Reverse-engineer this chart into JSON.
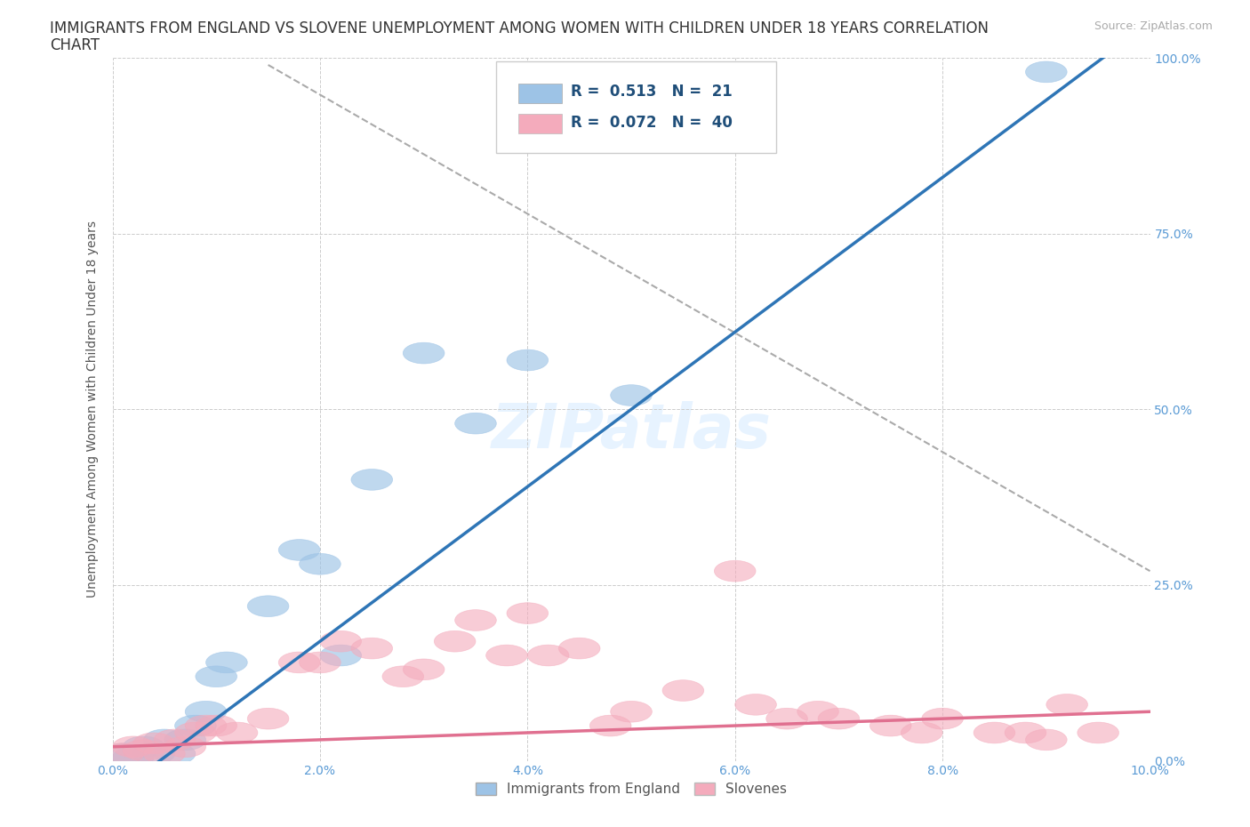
{
  "title_line1": "IMMIGRANTS FROM ENGLAND VS SLOVENE UNEMPLOYMENT AMONG WOMEN WITH CHILDREN UNDER 18 YEARS CORRELATION",
  "title_line2": "CHART",
  "source": "Source: ZipAtlas.com",
  "ylabel": "Unemployment Among Women with Children Under 18 years",
  "xlim": [
    0.0,
    0.1
  ],
  "ylim": [
    0.0,
    1.0
  ],
  "xticks": [
    0.0,
    0.02,
    0.04,
    0.06,
    0.08,
    0.1
  ],
  "xticklabels": [
    "0.0%",
    "2.0%",
    "4.0%",
    "6.0%",
    "8.0%",
    "10.0%"
  ],
  "yticks": [
    0.0,
    0.25,
    0.5,
    0.75,
    1.0
  ],
  "yticklabels": [
    "0.0%",
    "25.0%",
    "50.0%",
    "75.0%",
    "100.0%"
  ],
  "blue_color": "#9DC3E6",
  "pink_color": "#F4ABBC",
  "blue_line_color": "#2E75B6",
  "pink_line_color": "#E07090",
  "grid_color": "#CCCCCC",
  "legend_R_blue": "R =  0.513",
  "legend_N_blue": "N =  21",
  "legend_R_pink": "R =  0.072",
  "legend_N_pink": "N =  40",
  "blue_scatter_x": [
    0.001,
    0.002,
    0.003,
    0.004,
    0.005,
    0.006,
    0.007,
    0.008,
    0.009,
    0.01,
    0.011,
    0.015,
    0.018,
    0.02,
    0.022,
    0.025,
    0.03,
    0.035,
    0.04,
    0.05,
    0.09
  ],
  "blue_scatter_y": [
    0.01,
    0.005,
    0.02,
    0.01,
    0.03,
    0.01,
    0.03,
    0.05,
    0.07,
    0.12,
    0.14,
    0.22,
    0.3,
    0.28,
    0.15,
    0.4,
    0.58,
    0.48,
    0.57,
    0.52,
    0.98
  ],
  "pink_scatter_x": [
    0.001,
    0.002,
    0.003,
    0.004,
    0.005,
    0.006,
    0.007,
    0.008,
    0.009,
    0.01,
    0.012,
    0.015,
    0.018,
    0.02,
    0.022,
    0.025,
    0.028,
    0.03,
    0.033,
    0.035,
    0.038,
    0.04,
    0.042,
    0.045,
    0.048,
    0.05,
    0.055,
    0.06,
    0.062,
    0.065,
    0.068,
    0.07,
    0.075,
    0.078,
    0.08,
    0.085,
    0.088,
    0.09,
    0.092,
    0.095
  ],
  "pink_scatter_y": [
    0.01,
    0.02,
    0.015,
    0.025,
    0.01,
    0.03,
    0.02,
    0.04,
    0.05,
    0.05,
    0.04,
    0.06,
    0.14,
    0.14,
    0.17,
    0.16,
    0.12,
    0.13,
    0.17,
    0.2,
    0.15,
    0.21,
    0.15,
    0.16,
    0.05,
    0.07,
    0.1,
    0.27,
    0.08,
    0.06,
    0.07,
    0.06,
    0.05,
    0.04,
    0.06,
    0.04,
    0.04,
    0.03,
    0.08,
    0.04
  ],
  "blue_line_x": [
    0.0,
    0.1
  ],
  "blue_line_y": [
    -0.05,
    1.05
  ],
  "pink_line_x": [
    0.0,
    0.1
  ],
  "pink_line_y": [
    0.02,
    0.07
  ],
  "dash_line_x": [
    0.015,
    0.1
  ],
  "dash_line_y": [
    0.99,
    0.27
  ],
  "title_fontsize": 12,
  "axis_label_fontsize": 10,
  "tick_fontsize": 10
}
